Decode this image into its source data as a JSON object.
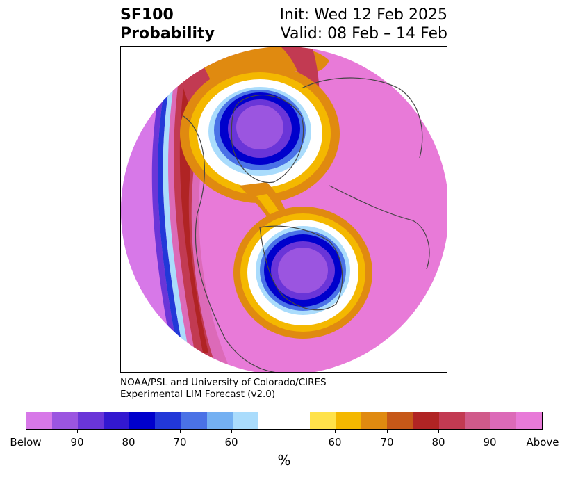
{
  "title": {
    "variable": "SF100",
    "subtitle": "Probability",
    "init": "Init: Wed 12 Feb 2025",
    "valid": "Valid: 08 Feb – 14 Feb"
  },
  "credit": {
    "line1": "NOAA/PSL and University of Colorado/CIRES",
    "line2": "Experimental LIM Forecast (v2.0)"
  },
  "colorbar": {
    "unit": "%",
    "colors": [
      "#d778e8",
      "#9b55e0",
      "#6a35d8",
      "#3318d0",
      "#0000cc",
      "#2238d8",
      "#4a72e6",
      "#74b0f2",
      "#aadcfc",
      "#ffffff",
      "#ffe24a",
      "#f4b800",
      "#e08a10",
      "#c65818",
      "#b02424",
      "#c23a52",
      "#d05a8a",
      "#dc6ab8",
      "#e87ad8"
    ],
    "labels": [
      "Below",
      "90",
      "80",
      "70",
      "60",
      "60",
      "70",
      "80",
      "90",
      "Above"
    ]
  },
  "map": {
    "projection": "north-polar-stereographic",
    "background_color": "#e87ad8",
    "features": [
      "negative-anomaly-center-greenland-arctic",
      "negative-anomaly-center-canada",
      "positive-anomaly-band-pacific"
    ]
  }
}
